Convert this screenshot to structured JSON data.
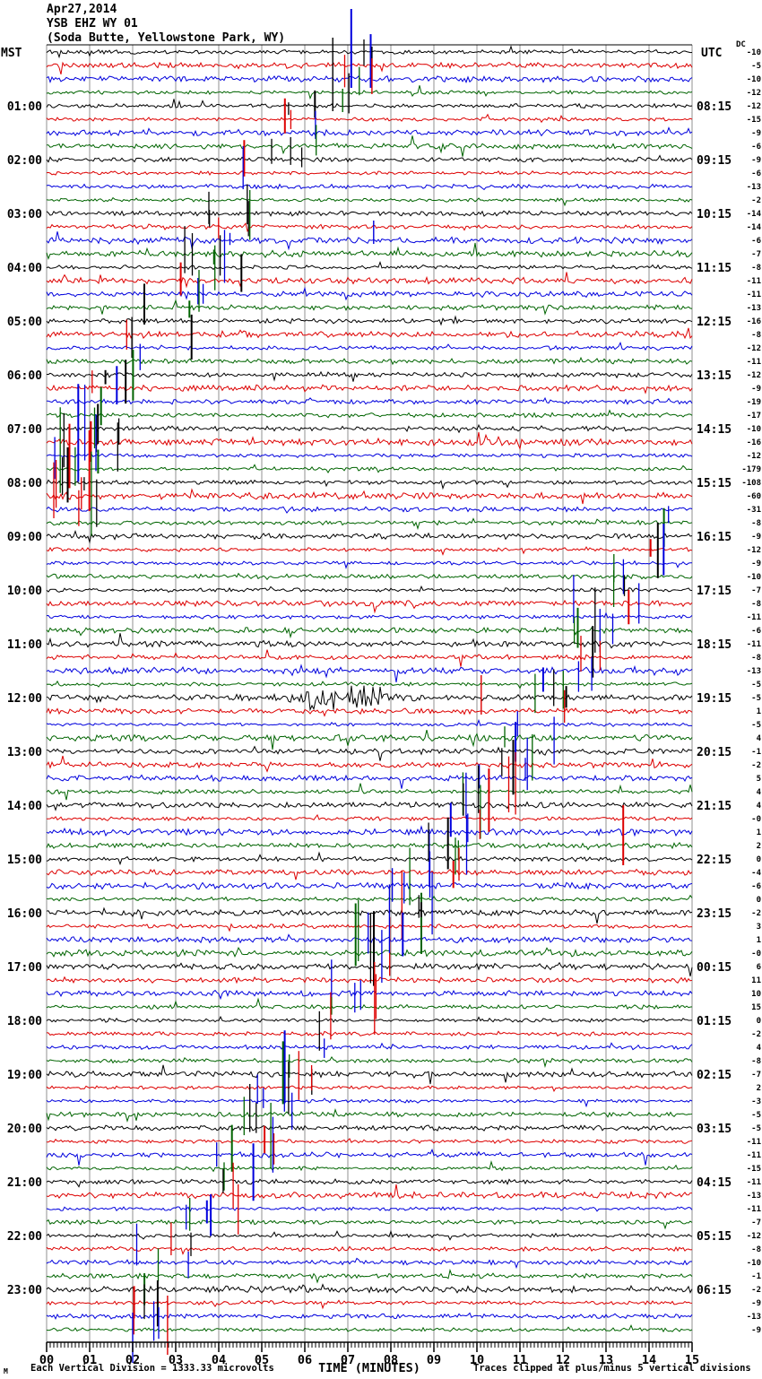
{
  "header": {
    "date": "Apr27,2014",
    "station": "YSB EHZ WY 01",
    "location": "(Soda Butte, Yellowstone Park, WY)"
  },
  "axes": {
    "left_timezone": "MST",
    "right_timezone": "UTC",
    "dc_column_header": "DC",
    "x_axis_title": "TIME (MINUTES)",
    "x_tick_labels": [
      "00",
      "01",
      "02",
      "03",
      "04",
      "05",
      "06",
      "07",
      "08",
      "09",
      "10",
      "11",
      "12",
      "13",
      "14",
      "15"
    ]
  },
  "footer": {
    "left_note": "Each Vertical Division = 1333.33 microvolts",
    "right_note": "Traces clipped at plus/minus 5 vertical divisions",
    "corner_mark": "M"
  },
  "chart_data": {
    "type": "line",
    "subtype": "helicorder-seismogram",
    "rows": 96,
    "minutes_per_row": 15,
    "x_range_minutes": [
      0,
      15
    ],
    "grid": true,
    "trace_colors": [
      "#000000",
      "#dd0000",
      "#0000dd",
      "#006400"
    ],
    "grid_color": "#909090",
    "hour_label_rows_step": 4,
    "left_hour_labels": [
      "01:00",
      "02:00",
      "03:00",
      "04:00",
      "05:00",
      "06:00",
      "07:00",
      "08:00",
      "09:00",
      "10:00",
      "11:00",
      "12:00",
      "13:00",
      "14:00",
      "15:00",
      "16:00",
      "17:00",
      "18:00",
      "19:00",
      "20:00",
      "21:00",
      "22:00",
      "23:00"
    ],
    "right_utc_labels": [
      "08:15",
      "09:15",
      "10:15",
      "11:15",
      "12:15",
      "13:15",
      "14:15",
      "15:15",
      "16:15",
      "17:15",
      "18:15",
      "19:15",
      "20:15",
      "21:15",
      "22:15",
      "23:15",
      "00:15",
      "01:15",
      "02:15",
      "03:15",
      "04:15",
      "05:15",
      "06:15"
    ],
    "dc_offsets": [
      "-10",
      "-5",
      "-10",
      "-12",
      "-12",
      "-15",
      "-9",
      "-6",
      "-9",
      "-6",
      "-13",
      "-2",
      "-14",
      "-14",
      "-6",
      "-7",
      "-8",
      "-11",
      "-11",
      "-13",
      "-16",
      "-8",
      "-12",
      "-11",
      "-12",
      "-9",
      "-19",
      "-17",
      "-10",
      "-16",
      "-12",
      "-179",
      "-108",
      "-60",
      "-31",
      "-8",
      "-9",
      "-12",
      "-9",
      "-10",
      "-7",
      "-8",
      "-11",
      "-6",
      "-11",
      "-8",
      "-13",
      "-5",
      "-5",
      "1",
      "-5",
      "4",
      "-1",
      "-2",
      "5",
      "4",
      "4",
      "-0",
      "1",
      "2",
      "0",
      "-4",
      "-6",
      "0",
      "-2",
      "3",
      "1",
      "-0",
      "6",
      "11",
      "10",
      "15",
      "0",
      "-2",
      "4",
      "-8",
      "-7",
      "2",
      "-3",
      "-5",
      "-5",
      "-11",
      "-11",
      "-15",
      "-11",
      "-13",
      "-11",
      "-7",
      "-12",
      "-8",
      "-10",
      "-1",
      "-2",
      "-9",
      "-13",
      "-9"
    ],
    "event_clusters": [
      {
        "row_start": 0,
        "row_end": 4,
        "minute": 7.3,
        "strength": 1
      },
      {
        "row_start": 4,
        "row_end": 8,
        "minute": 5.9,
        "strength": 1
      },
      {
        "row_start": 8,
        "row_end": 12,
        "minute": 4.95,
        "strength": 1
      },
      {
        "row_start": 12,
        "row_end": 16,
        "minute": 4.15,
        "strength": 1
      },
      {
        "row_start": 16,
        "row_end": 20,
        "minute": 3.3,
        "strength": 1
      },
      {
        "row_start": 20,
        "row_end": 24,
        "minute": 2.2,
        "strength": 1
      },
      {
        "row_start": 24,
        "row_end": 28,
        "minute": 1.3,
        "strength": 1
      },
      {
        "row_start": 28,
        "row_end": 33,
        "minute": 0.7,
        "strength": 3
      },
      {
        "row_start": 34,
        "row_end": 38,
        "minute": 14.3,
        "strength": 1
      },
      {
        "row_start": 38,
        "row_end": 42,
        "minute": 13.45,
        "strength": 1
      },
      {
        "row_start": 42,
        "row_end": 46,
        "minute": 12.6,
        "strength": 2
      },
      {
        "row_start": 46,
        "row_end": 50,
        "minute": 11.75,
        "strength": 1
      },
      {
        "row_start": 50,
        "row_end": 54,
        "minute": 10.9,
        "strength": 2
      },
      {
        "row_start": 54,
        "row_end": 58,
        "minute": 10.05,
        "strength": 2
      },
      {
        "row_start": 58,
        "row_end": 62,
        "minute": 9.2,
        "strength": 2
      },
      {
        "row_start": 62,
        "row_end": 66,
        "minute": 8.35,
        "strength": 2
      },
      {
        "row_start": 66,
        "row_end": 70,
        "minute": 7.5,
        "strength": 2
      },
      {
        "row_start": 70,
        "row_end": 74,
        "minute": 6.65,
        "strength": 1
      },
      {
        "row_start": 74,
        "row_end": 78,
        "minute": 5.8,
        "strength": 2
      },
      {
        "row_start": 78,
        "row_end": 82,
        "minute": 4.95,
        "strength": 2
      },
      {
        "row_start": 82,
        "row_end": 86,
        "minute": 4.1,
        "strength": 1
      },
      {
        "row_start": 86,
        "row_end": 90,
        "minute": 3.25,
        "strength": 1
      },
      {
        "row_start": 90,
        "row_end": 94,
        "minute": 2.4,
        "strength": 1
      }
    ],
    "special_spikes": [
      {
        "row": 0,
        "minute": 7.56,
        "up": 6,
        "down": 30
      },
      {
        "row": 1,
        "minute": 7.56,
        "up": 8,
        "down": 32
      },
      {
        "row": 2,
        "minute": 7.08,
        "up": 78,
        "down": 10,
        "width": 2
      },
      {
        "row": 3,
        "minute": 6.88,
        "up": 4,
        "down": 22
      },
      {
        "row": 4,
        "minute": 6.65,
        "up": 76,
        "down": 6
      },
      {
        "row": 14,
        "minute": 7.6,
        "up": 22,
        "down": 4
      },
      {
        "row": 49,
        "minute": 10.1,
        "up": 40,
        "down": 4
      },
      {
        "row": 57,
        "minute": 13.4,
        "up": 15,
        "down": 52,
        "width": 2
      },
      {
        "row": 93,
        "minute": 2.81,
        "up": 8,
        "down": 58
      },
      {
        "row": 94,
        "minute": 2.0,
        "up": 4,
        "down": 52
      }
    ],
    "noise_bursts": [
      {
        "row": 48,
        "from": 6.05,
        "to": 7.85,
        "amp": 4.5
      },
      {
        "row": 48,
        "from": 5.1,
        "to": 6.05,
        "amp": 2.2
      },
      {
        "row": 48,
        "from": 7.85,
        "to": 8.6,
        "amp": 1.8
      }
    ]
  }
}
